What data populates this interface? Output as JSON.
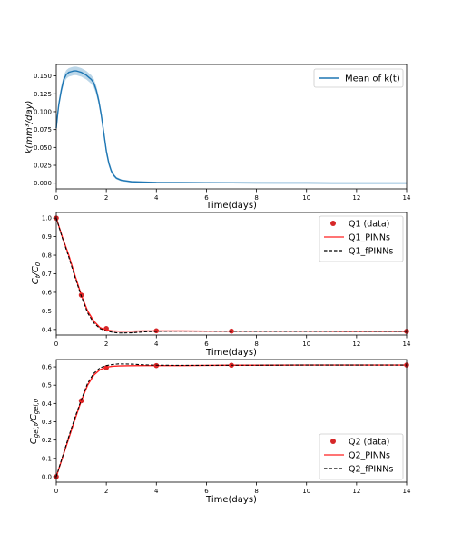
{
  "chart_data": [
    {
      "type": "line",
      "xlabel": "Time(days)",
      "ylabel": "k(mm³/day)",
      "xlim": [
        0,
        14
      ],
      "ylim": [
        -0.008,
        0.166
      ],
      "xticks": [
        0,
        2,
        4,
        6,
        8,
        10,
        12,
        14
      ],
      "yticks": [
        0.0,
        0.025,
        0.05,
        0.075,
        0.1,
        0.125,
        0.15
      ],
      "ytick_labels": [
        "0.000",
        "0.025",
        "0.050",
        "0.075",
        "0.100",
        "0.125",
        "0.150"
      ],
      "legend_position": "top-right",
      "band_halfwidth": 0.006,
      "series": [
        {
          "name": "Mean of k(t)",
          "color": "#1f77b4",
          "x": [
            0,
            0.05,
            0.1,
            0.2,
            0.3,
            0.4,
            0.5,
            0.6,
            0.7,
            0.8,
            0.9,
            1.0,
            1.1,
            1.2,
            1.3,
            1.4,
            1.5,
            1.6,
            1.7,
            1.8,
            1.9,
            2.0,
            2.1,
            2.2,
            2.3,
            2.4,
            2.6,
            2.8,
            3.0,
            3.5,
            4.0,
            5,
            6,
            7,
            8,
            9,
            10,
            11,
            12,
            13,
            14
          ],
          "values": [
            0.077,
            0.095,
            0.11,
            0.13,
            0.145,
            0.152,
            0.155,
            0.156,
            0.157,
            0.157,
            0.156,
            0.155,
            0.153,
            0.151,
            0.148,
            0.145,
            0.14,
            0.13,
            0.115,
            0.095,
            0.07,
            0.045,
            0.028,
            0.017,
            0.011,
            0.007,
            0.004,
            0.003,
            0.002,
            0.0015,
            0.001,
            0.0008,
            0.0006,
            0.0005,
            0.0004,
            0.0003,
            0.0003,
            0.0002,
            0.0002,
            0.0002,
            0.0002
          ]
        }
      ]
    },
    {
      "type": "line",
      "xlabel": "Time(days)",
      "ylabel": "Ct/C0",
      "xlim": [
        0,
        14
      ],
      "ylim": [
        0.37,
        1.03
      ],
      "xticks": [
        0,
        2,
        4,
        6,
        8,
        10,
        12,
        14
      ],
      "yticks": [
        0.4,
        0.5,
        0.6,
        0.7,
        0.8,
        0.9,
        1.0
      ],
      "ytick_labels": [
        "0.4",
        "0.5",
        "0.6",
        "0.7",
        "0.8",
        "0.9",
        "1.0"
      ],
      "legend_position": "top-right",
      "series": [
        {
          "name": "Q1 (data)",
          "kind": "scatter",
          "color": "#d62728",
          "x": [
            0,
            1,
            2,
            4,
            7,
            14
          ],
          "values": [
            1.0,
            0.585,
            0.405,
            0.393,
            0.391,
            0.39
          ]
        },
        {
          "name": "Q1_PINNs",
          "kind": "line",
          "color": "#ff2020",
          "x": [
            0,
            0.25,
            0.5,
            0.75,
            1.0,
            1.25,
            1.5,
            1.75,
            2.0,
            2.25,
            2.5,
            3.0,
            3.5,
            4.0,
            5,
            6,
            7,
            8,
            10,
            12,
            14
          ],
          "values": [
            1.0,
            0.895,
            0.8,
            0.69,
            0.585,
            0.5,
            0.445,
            0.41,
            0.397,
            0.392,
            0.391,
            0.391,
            0.392,
            0.392,
            0.392,
            0.391,
            0.391,
            0.391,
            0.391,
            0.39,
            0.39
          ]
        },
        {
          "name": "Q1_fPINNs",
          "kind": "dashed",
          "color": "#000000",
          "x": [
            0,
            0.25,
            0.5,
            0.75,
            1.0,
            1.25,
            1.5,
            1.75,
            2.0,
            2.25,
            2.5,
            3.0,
            3.5,
            4.0,
            5,
            6,
            7,
            8,
            10,
            12,
            14
          ],
          "values": [
            1.0,
            0.89,
            0.79,
            0.68,
            0.58,
            0.49,
            0.435,
            0.405,
            0.392,
            0.385,
            0.381,
            0.382,
            0.387,
            0.39,
            0.391,
            0.391,
            0.39,
            0.39,
            0.39,
            0.39,
            0.39
          ]
        }
      ]
    },
    {
      "type": "line",
      "xlabel": "Time(days)",
      "ylabel": "Cgel,t/Cgel,0",
      "xlim": [
        0,
        14
      ],
      "ylim": [
        -0.03,
        0.64
      ],
      "xticks": [
        0,
        2,
        4,
        6,
        8,
        10,
        12,
        14
      ],
      "yticks": [
        0.0,
        0.1,
        0.2,
        0.3,
        0.4,
        0.5,
        0.6
      ],
      "ytick_labels": [
        "0.0",
        "0.1",
        "0.2",
        "0.3",
        "0.4",
        "0.5",
        "0.6"
      ],
      "legend_position": "bottom-right",
      "series": [
        {
          "name": "Q2 (data)",
          "kind": "scatter",
          "color": "#d62728",
          "x": [
            0,
            1,
            2,
            4,
            7,
            14
          ],
          "values": [
            0.0,
            0.415,
            0.595,
            0.607,
            0.609,
            0.61
          ]
        },
        {
          "name": "Q2_PINNs",
          "kind": "line",
          "color": "#ff2020",
          "x": [
            0,
            0.25,
            0.5,
            0.75,
            1.0,
            1.25,
            1.5,
            1.75,
            2.0,
            2.25,
            2.5,
            3.0,
            3.5,
            4.0,
            5,
            6,
            7,
            8,
            10,
            12,
            14
          ],
          "values": [
            0.0,
            0.105,
            0.21,
            0.315,
            0.415,
            0.5,
            0.555,
            0.585,
            0.598,
            0.603,
            0.605,
            0.606,
            0.607,
            0.607,
            0.607,
            0.608,
            0.609,
            0.609,
            0.61,
            0.61,
            0.61
          ]
        },
        {
          "name": "Q2_fPINNs",
          "kind": "dashed",
          "color": "#000000",
          "x": [
            0,
            0.25,
            0.5,
            0.75,
            1.0,
            1.25,
            1.5,
            1.75,
            2.0,
            2.25,
            2.5,
            3.0,
            3.5,
            4.0,
            5,
            6,
            7,
            8,
            10,
            12,
            14
          ],
          "values": [
            0.0,
            0.11,
            0.22,
            0.325,
            0.42,
            0.51,
            0.565,
            0.595,
            0.607,
            0.613,
            0.616,
            0.615,
            0.611,
            0.609,
            0.608,
            0.608,
            0.609,
            0.609,
            0.61,
            0.61,
            0.61
          ]
        }
      ]
    }
  ]
}
